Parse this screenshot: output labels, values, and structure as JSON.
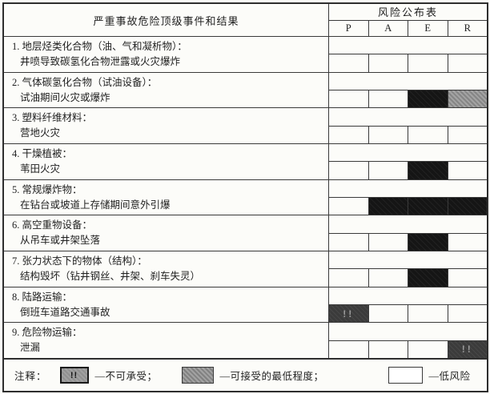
{
  "table": {
    "left_header": "严重事故危险顶级事件和结果",
    "right_header": "风险公布表",
    "columns": [
      "P",
      "A",
      "E",
      "R"
    ],
    "rows": [
      {
        "event": "1. 地层烃类化合物（油、气和凝析物）：",
        "result": "井喷导致碳氢化合物泄露或火灾爆炸",
        "cells": [
          "low",
          "low",
          "low",
          "low"
        ]
      },
      {
        "event": "2. 气体碳氢化合物（试油设备）：",
        "result": "试油期间火灾或爆炸",
        "cells": [
          "low",
          "low",
          "black",
          "min"
        ]
      },
      {
        "event": "3. 塑料纤维材料：",
        "result": "营地火灾",
        "cells": [
          "low",
          "low",
          "low",
          "low"
        ]
      },
      {
        "event": "4. 干燥植被：",
        "result": "苇田火灾",
        "cells": [
          "low",
          "low",
          "black",
          "low"
        ]
      },
      {
        "event": "5. 常规爆炸物：",
        "result": "在钻台或坡道上存储期间意外引爆",
        "cells": [
          "low",
          "black",
          "black",
          "black"
        ]
      },
      {
        "event": "6. 高空重物设备：",
        "result": "从吊车或井架坠落",
        "cells": [
          "low",
          "low",
          "black",
          "low"
        ]
      },
      {
        "event": "7. 张力状态下的物体（结构）：",
        "result": "结构毁坏（钻井钢丝、井架、刹车失灵）",
        "cells": [
          "low",
          "low",
          "black",
          "low"
        ]
      },
      {
        "event": "8. 陆路运输：",
        "result": "倒班车道路交通事故",
        "cells": [
          "alert",
          "low",
          "low",
          "low"
        ]
      },
      {
        "event": "9. 危险物运输：",
        "result": "泄漏",
        "cells": [
          "low",
          "low",
          "low",
          "alert"
        ]
      }
    ]
  },
  "symbols": {
    "alert": "!!"
  },
  "legend": {
    "label": "注释：",
    "items": [
      {
        "swatch": "alert",
        "text": "—不可承受；"
      },
      {
        "swatch": "min",
        "text": "—可接受的最低程度；"
      },
      {
        "swatch": "low",
        "text": "—低风险"
      }
    ]
  },
  "colors": {
    "black_cell": "#151515",
    "min_cell": "#9c9c9c",
    "alert_cell": "#3b3b3b",
    "border": "#3a3a3a",
    "paper": "#fcfcf9"
  }
}
